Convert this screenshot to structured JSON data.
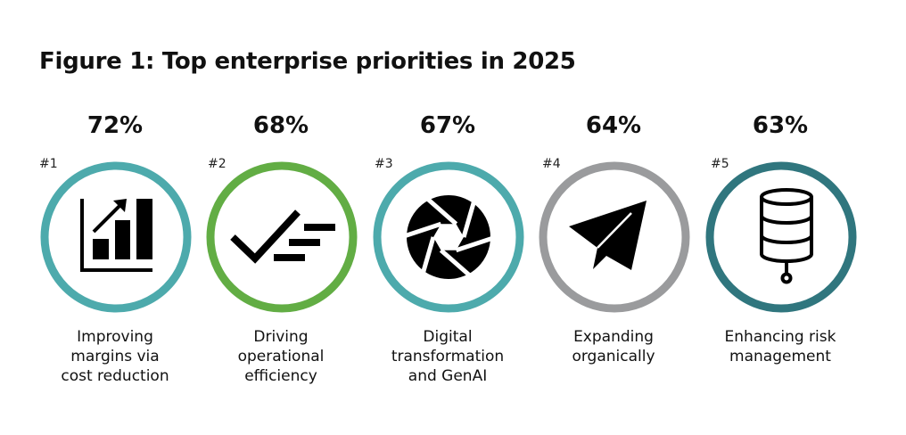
{
  "title": "Figure 1: Top enterprise priorities in 2025",
  "chart_data": {
    "type": "bar",
    "title": "Figure 1: Top enterprise priorities in 2025",
    "unit": "%",
    "items": [
      {
        "rank": "#1",
        "value": 72,
        "value_label": "72%",
        "label": "Improving\nmargins via\ncost reduction",
        "color": "#4daaac",
        "icon": "bar-chart-growth-icon"
      },
      {
        "rank": "#2",
        "value": 68,
        "value_label": "68%",
        "label": "Driving\noperational\nefficiency",
        "color": "#62ad44",
        "icon": "checklist-icon"
      },
      {
        "rank": "#3",
        "value": 67,
        "value_label": "67%",
        "label": "Digital\ntransformation\nand GenAI",
        "color": "#4daaac",
        "icon": "aperture-icon"
      },
      {
        "rank": "#4",
        "value": 64,
        "value_label": "64%",
        "label": "Expanding\norganically",
        "color": "#9a9b9d",
        "icon": "paper-plane-icon"
      },
      {
        "rank": "#5",
        "value": 63,
        "value_label": "63%",
        "label": "Enhancing risk\nmanagement",
        "color": "#30767e",
        "icon": "database-icon"
      }
    ]
  }
}
